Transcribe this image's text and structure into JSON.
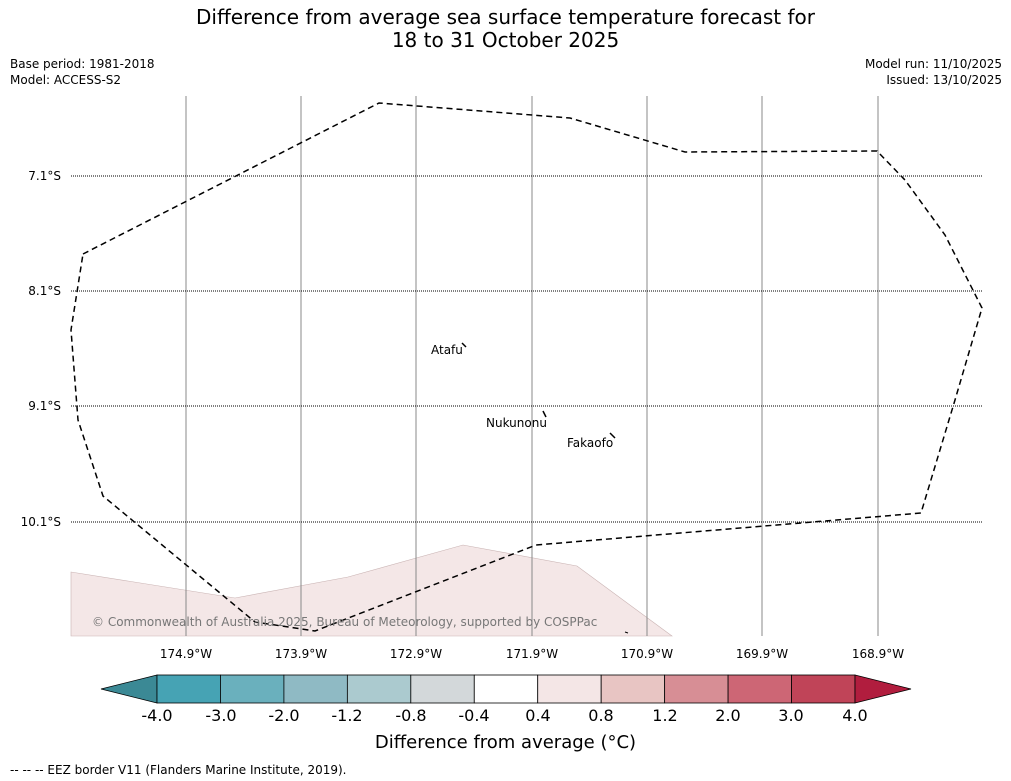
{
  "title": {
    "line1": "Difference from average sea surface temperature forecast for",
    "line2": "18 to 31 October 2025"
  },
  "meta": {
    "base_period": "Base period: 1981-2018",
    "model": "Model: ACCESS-S2",
    "model_run": "Model run: 11/10/2025",
    "issued": "Issued: 13/10/2025"
  },
  "map": {
    "latitude_labels": [
      "7.1°S",
      "8.1°S",
      "9.1°S",
      "10.1°S"
    ],
    "longitude_labels": [
      "174.9°W",
      "173.9°W",
      "172.9°W",
      "171.9°W",
      "170.9°W",
      "169.9°W",
      "168.9°W"
    ],
    "places": [
      "Atafu",
      "Nukunonu",
      "Fakaofo"
    ],
    "copyright": "© Commonwealth of Australia 2025, Bureau of Meteorology, supported by COSPPac",
    "shaded_anomaly_class": "0.4 to 0.8"
  },
  "colorbar": {
    "label": "Difference from average (°C)",
    "ticks": [
      "-4.0",
      "-3.0",
      "-2.0",
      "-1.2",
      "-0.8",
      "-0.4",
      "0.4",
      "0.8",
      "1.2",
      "2.0",
      "3.0",
      "4.0"
    ],
    "colors": [
      "#3b8995",
      "#46a3b4",
      "#6ab0bd",
      "#8fbac4",
      "#abcacf",
      "#d3d8da",
      "#ffffff",
      "#f4e6e6",
      "#e8c5c3",
      "#d78e95",
      "#cd6675",
      "#c04458",
      "#b11d3e"
    ]
  },
  "footnote": "--  --  -- EEZ border V11 (Flanders Marine Institute, 2019)."
}
